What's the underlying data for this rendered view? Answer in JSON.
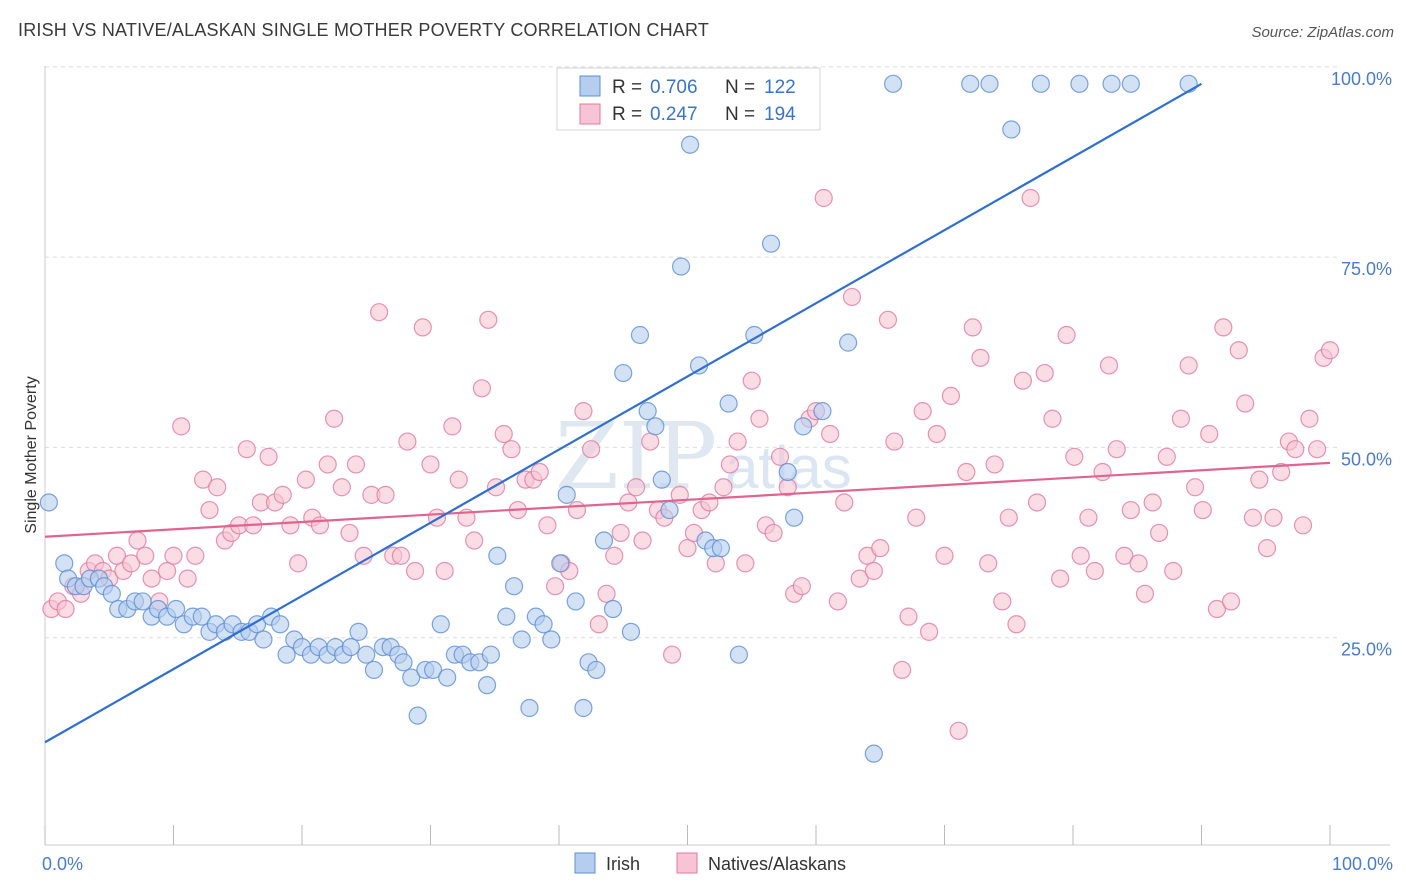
{
  "header": {
    "title": "IRISH VS NATIVE/ALASKAN SINGLE MOTHER POVERTY CORRELATION CHART",
    "source": "Source: ZipAtlas.com"
  },
  "watermark": {
    "zip": "ZIP",
    "atlas": "atlas"
  },
  "colors": {
    "irish": "#5b8fd6",
    "irish_fill": "#b5cdef",
    "natives": "#e07aa0",
    "natives_fill": "#f6c4d4",
    "grid": "#dddddd",
    "tick": "#4a7cc9"
  },
  "legend": {
    "rows": [
      {
        "r_label": "R = ",
        "r_value": "0.706",
        "n_label": "N = ",
        "n_value": "122"
      },
      {
        "r_label": "R = ",
        "r_value": "0.247",
        "n_label": "N = ",
        "n_value": "194"
      }
    ]
  },
  "bottom_legend": {
    "irish": "Irish",
    "natives": "Natives/Alaskans"
  },
  "chart_data": {
    "type": "scatter",
    "title": "IRISH VS NATIVE/ALASKAN SINGLE MOTHER POVERTY CORRELATION CHART",
    "xlabel": "",
    "ylabel": "Single Mother Poverty",
    "xlim": [
      0,
      100
    ],
    "ylim": [
      0,
      100
    ],
    "x_tick_labels": [
      "0.0%",
      "100.0%"
    ],
    "y_tick_labels": [
      "100.0%",
      "75.0%",
      "50.0%",
      "25.0%"
    ],
    "y_ticks": [
      100,
      75,
      50,
      25
    ],
    "grid": true,
    "legend_position": "top-center",
    "series": [
      {
        "name": "Irish",
        "R": 0.706,
        "N": 122,
        "trend": {
          "x": [
            0,
            90
          ],
          "y": [
            13.5,
            100
          ]
        },
        "points": [
          [
            0.3,
            45
          ],
          [
            1.5,
            37
          ],
          [
            1.8,
            35
          ],
          [
            2.4,
            34
          ],
          [
            3,
            34
          ],
          [
            3.5,
            35
          ],
          [
            4.2,
            35
          ],
          [
            4.6,
            34
          ],
          [
            5.2,
            33
          ],
          [
            5.7,
            31
          ],
          [
            6.4,
            31
          ],
          [
            7,
            32
          ],
          [
            7.6,
            32
          ],
          [
            8.3,
            30
          ],
          [
            8.8,
            31
          ],
          [
            9.5,
            30
          ],
          [
            10.2,
            31
          ],
          [
            10.8,
            29
          ],
          [
            11.5,
            30
          ],
          [
            12.2,
            30
          ],
          [
            12.8,
            28
          ],
          [
            13.3,
            29
          ],
          [
            14,
            28
          ],
          [
            14.6,
            29
          ],
          [
            15.3,
            28
          ],
          [
            15.9,
            28
          ],
          [
            16.5,
            29
          ],
          [
            17,
            27
          ],
          [
            17.6,
            30
          ],
          [
            18.3,
            29
          ],
          [
            18.8,
            25
          ],
          [
            19.4,
            27
          ],
          [
            20,
            26
          ],
          [
            20.7,
            25
          ],
          [
            21.3,
            26
          ],
          [
            22,
            25
          ],
          [
            22.6,
            26
          ],
          [
            23.2,
            25
          ],
          [
            23.8,
            26
          ],
          [
            24.4,
            28
          ],
          [
            25,
            25
          ],
          [
            25.6,
            23
          ],
          [
            26.3,
            26
          ],
          [
            26.9,
            26
          ],
          [
            27.5,
            25
          ],
          [
            27.9,
            24
          ],
          [
            28.5,
            22
          ],
          [
            29,
            17
          ],
          [
            29.6,
            23
          ],
          [
            30.2,
            23
          ],
          [
            30.8,
            29
          ],
          [
            31.3,
            22
          ],
          [
            31.9,
            25
          ],
          [
            32.5,
            25
          ],
          [
            33.1,
            24
          ],
          [
            33.8,
            24
          ],
          [
            34.4,
            21
          ],
          [
            34.7,
            25
          ],
          [
            35.2,
            38
          ],
          [
            35.9,
            30
          ],
          [
            36.5,
            34
          ],
          [
            37.1,
            27
          ],
          [
            37.7,
            18
          ],
          [
            38.2,
            30
          ],
          [
            38.8,
            29
          ],
          [
            39.4,
            27
          ],
          [
            40.1,
            37
          ],
          [
            40.6,
            46
          ],
          [
            41.3,
            32
          ],
          [
            41.9,
            18
          ],
          [
            42.3,
            24
          ],
          [
            42.9,
            23
          ],
          [
            43.5,
            40
          ],
          [
            44.2,
            31
          ],
          [
            45,
            62
          ],
          [
            45.6,
            28
          ],
          [
            46.3,
            67
          ],
          [
            46.9,
            57
          ],
          [
            47.5,
            55
          ],
          [
            48,
            48
          ],
          [
            48.6,
            44
          ],
          [
            49.5,
            76
          ],
          [
            50.2,
            92
          ],
          [
            50.9,
            63
          ],
          [
            51.4,
            40
          ],
          [
            52,
            39
          ],
          [
            52.6,
            39
          ],
          [
            53.2,
            58
          ],
          [
            54,
            25
          ],
          [
            55.2,
            67
          ],
          [
            56.5,
            79
          ],
          [
            57.8,
            49
          ],
          [
            58.3,
            43
          ],
          [
            59,
            55
          ],
          [
            60.5,
            57
          ],
          [
            62.5,
            66
          ],
          [
            64.5,
            12
          ],
          [
            66,
            100
          ],
          [
            72,
            100
          ],
          [
            73.5,
            100
          ],
          [
            75.2,
            94
          ],
          [
            77.5,
            100
          ],
          [
            80.5,
            100
          ],
          [
            83,
            100
          ],
          [
            84.5,
            100
          ],
          [
            89,
            100
          ]
        ]
      },
      {
        "name": "Natives/Alaskans",
        "R": 0.247,
        "N": 194,
        "trend": {
          "x": [
            0,
            100
          ],
          "y": [
            40.5,
            50.2
          ]
        },
        "points": [
          [
            0.5,
            31
          ],
          [
            1,
            32
          ],
          [
            1.6,
            31
          ],
          [
            2.2,
            34
          ],
          [
            2.8,
            33
          ],
          [
            3.4,
            36
          ],
          [
            3.9,
            37
          ],
          [
            4.5,
            36
          ],
          [
            5,
            35
          ],
          [
            5.6,
            38
          ],
          [
            6.1,
            36
          ],
          [
            6.7,
            37
          ],
          [
            7.2,
            40
          ],
          [
            7.8,
            38
          ],
          [
            8.3,
            35
          ],
          [
            8.9,
            32
          ],
          [
            9.5,
            36
          ],
          [
            10,
            38
          ],
          [
            10.6,
            55
          ],
          [
            11.1,
            35
          ],
          [
            11.7,
            38
          ],
          [
            12.3,
            48
          ],
          [
            12.8,
            44
          ],
          [
            13.4,
            47
          ],
          [
            14,
            40
          ],
          [
            14.5,
            41
          ],
          [
            15.1,
            42
          ],
          [
            15.7,
            52
          ],
          [
            16.2,
            42
          ],
          [
            16.8,
            45
          ],
          [
            17.4,
            51
          ],
          [
            17.9,
            45
          ],
          [
            18.5,
            46
          ],
          [
            19.1,
            42
          ],
          [
            19.7,
            37
          ],
          [
            20.3,
            48
          ],
          [
            20.8,
            43
          ],
          [
            21.4,
            42
          ],
          [
            22,
            50
          ],
          [
            22.5,
            56
          ],
          [
            23.1,
            47
          ],
          [
            23.7,
            41
          ],
          [
            24.2,
            50
          ],
          [
            24.8,
            38
          ],
          [
            25.4,
            46
          ],
          [
            26,
            70
          ],
          [
            26.5,
            46
          ],
          [
            27.1,
            38
          ],
          [
            27.7,
            38
          ],
          [
            28.2,
            53
          ],
          [
            28.8,
            36
          ],
          [
            29.4,
            68
          ],
          [
            30,
            50
          ],
          [
            30.5,
            43
          ],
          [
            31.1,
            36
          ],
          [
            31.7,
            55
          ],
          [
            32.2,
            48
          ],
          [
            32.8,
            43
          ],
          [
            33.4,
            40
          ],
          [
            34,
            60
          ],
          [
            34.5,
            69
          ],
          [
            35.1,
            47
          ],
          [
            35.7,
            54
          ],
          [
            36.3,
            52
          ],
          [
            36.8,
            44
          ],
          [
            37.4,
            48
          ],
          [
            38,
            48
          ],
          [
            38.5,
            49
          ],
          [
            39.1,
            42
          ],
          [
            39.7,
            34
          ],
          [
            40.2,
            37
          ],
          [
            40.8,
            36
          ],
          [
            41.4,
            44
          ],
          [
            41.9,
            57
          ],
          [
            42.5,
            52
          ],
          [
            43.1,
            29
          ],
          [
            43.7,
            33
          ],
          [
            44.3,
            38
          ],
          [
            44.8,
            41
          ],
          [
            45.4,
            45
          ],
          [
            46,
            47
          ],
          [
            46.5,
            40
          ],
          [
            47.1,
            53
          ],
          [
            47.7,
            44
          ],
          [
            48.2,
            43
          ],
          [
            48.8,
            25
          ],
          [
            49.4,
            46
          ],
          [
            50,
            39
          ],
          [
            50.5,
            41
          ],
          [
            51.1,
            44
          ],
          [
            51.7,
            45
          ],
          [
            52.2,
            37
          ],
          [
            52.8,
            47
          ],
          [
            53.3,
            50
          ],
          [
            53.9,
            53
          ],
          [
            54.5,
            37
          ],
          [
            55,
            61
          ],
          [
            55.6,
            56
          ],
          [
            56.1,
            42
          ],
          [
            56.7,
            41
          ],
          [
            57.2,
            51
          ],
          [
            57.8,
            47
          ],
          [
            58.3,
            33
          ],
          [
            58.9,
            34
          ],
          [
            59.5,
            56
          ],
          [
            60,
            57
          ],
          [
            60.6,
            85
          ],
          [
            61.1,
            54
          ],
          [
            61.7,
            32
          ],
          [
            62.2,
            45
          ],
          [
            62.8,
            72
          ],
          [
            63.4,
            35
          ],
          [
            64,
            38
          ],
          [
            64.5,
            36
          ],
          [
            65,
            39
          ],
          [
            65.6,
            69
          ],
          [
            66.1,
            53
          ],
          [
            66.7,
            23
          ],
          [
            67.2,
            30
          ],
          [
            67.8,
            43
          ],
          [
            68.3,
            57
          ],
          [
            68.8,
            28
          ],
          [
            69.4,
            54
          ],
          [
            70,
            38
          ],
          [
            70.5,
            59
          ],
          [
            71.1,
            15
          ],
          [
            71.7,
            49
          ],
          [
            72.2,
            68
          ],
          [
            72.8,
            64
          ],
          [
            73.4,
            37
          ],
          [
            73.9,
            50
          ],
          [
            74.5,
            32
          ],
          [
            75,
            43
          ],
          [
            75.6,
            29
          ],
          [
            76.1,
            61
          ],
          [
            76.7,
            85
          ],
          [
            77.2,
            45
          ],
          [
            77.8,
            62
          ],
          [
            78.4,
            56
          ],
          [
            79,
            35
          ],
          [
            79.5,
            67
          ],
          [
            80.1,
            51
          ],
          [
            80.6,
            38
          ],
          [
            81.2,
            43
          ],
          [
            81.7,
            36
          ],
          [
            82.3,
            49
          ],
          [
            82.8,
            63
          ],
          [
            83.4,
            52
          ],
          [
            84,
            38
          ],
          [
            84.5,
            44
          ],
          [
            85.1,
            37
          ],
          [
            85.6,
            33
          ],
          [
            86.2,
            45
          ],
          [
            86.7,
            41
          ],
          [
            87.3,
            51
          ],
          [
            87.8,
            36
          ],
          [
            88.4,
            56
          ],
          [
            89,
            63
          ],
          [
            89.5,
            47
          ],
          [
            90.1,
            44
          ],
          [
            90.6,
            54
          ],
          [
            91.2,
            31
          ],
          [
            91.7,
            68
          ],
          [
            92.3,
            32
          ],
          [
            92.9,
            65
          ],
          [
            93.4,
            58
          ],
          [
            94,
            43
          ],
          [
            94.5,
            48
          ],
          [
            95.1,
            39
          ],
          [
            95.6,
            43
          ],
          [
            96.2,
            49
          ],
          [
            96.8,
            53
          ],
          [
            97.3,
            52
          ],
          [
            97.9,
            42
          ],
          [
            98.4,
            56
          ],
          [
            99,
            52
          ],
          [
            99.5,
            64
          ],
          [
            100,
            65
          ]
        ]
      }
    ]
  }
}
